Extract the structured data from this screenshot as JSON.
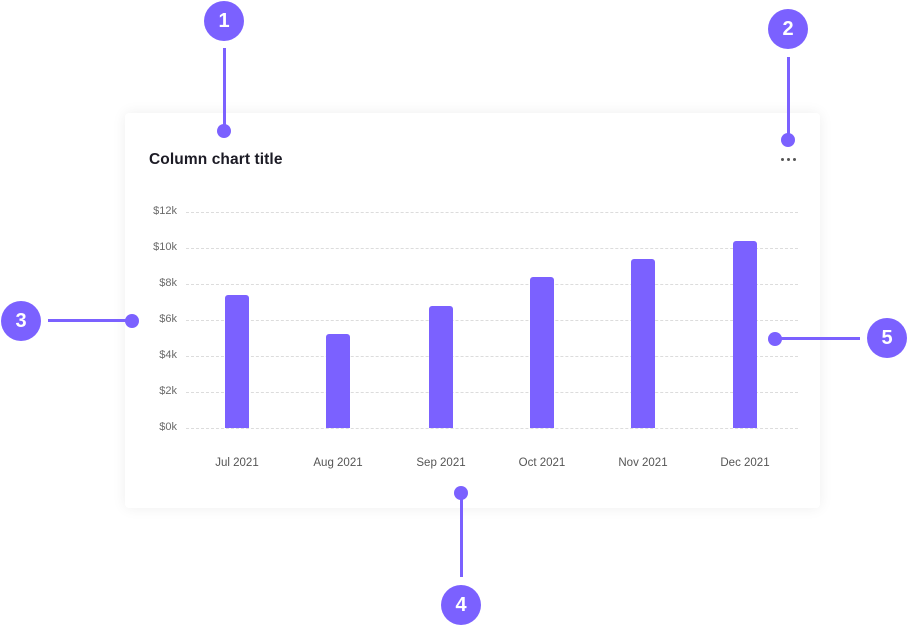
{
  "card": {
    "title": "Column chart title",
    "menu_icon": "more-horizontal-icon"
  },
  "annotations": [
    {
      "number": "1",
      "target": "title"
    },
    {
      "number": "2",
      "target": "menu"
    },
    {
      "number": "3",
      "target": "y-axis"
    },
    {
      "number": "4",
      "target": "x-axis"
    },
    {
      "number": "5",
      "target": "bars"
    }
  ],
  "colors": {
    "accent": "#7b61ff",
    "gridline": "#dcdcdc",
    "axis_text": "#6a6a6a"
  },
  "chart_data": {
    "type": "bar",
    "title": "Column chart title",
    "categories": [
      "Jul 2021",
      "Aug 2021",
      "Sep 2021",
      "Oct 2021",
      "Nov 2021",
      "Dec 2021"
    ],
    "values": [
      7400,
      5200,
      6800,
      8400,
      9400,
      10400
    ],
    "xlabel": "",
    "ylabel": "",
    "ylim": [
      0,
      12000
    ],
    "yticks": [
      "$0k",
      "$2k",
      "$4k",
      "$6k",
      "$8k",
      "$10k",
      "$12k"
    ],
    "grid": true,
    "legend": null
  }
}
